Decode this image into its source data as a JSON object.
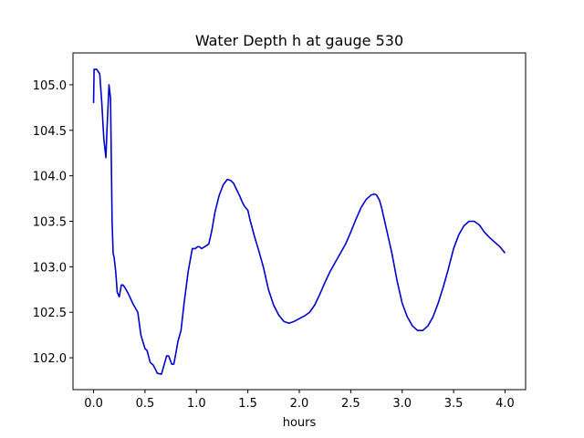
{
  "chart_data": {
    "type": "line",
    "title": "Water Depth h at gauge 530",
    "xlabel": "hours",
    "ylabel": "",
    "xlim": [
      -0.2,
      4.2
    ],
    "ylim": [
      101.65,
      105.35
    ],
    "xticks": [
      0.0,
      0.5,
      1.0,
      1.5,
      2.0,
      2.5,
      3.0,
      3.5,
      4.0
    ],
    "xtick_labels": [
      "0.0",
      "0.5",
      "1.0",
      "1.5",
      "2.0",
      "2.5",
      "3.0",
      "3.5",
      "4.0"
    ],
    "yticks": [
      102.0,
      102.5,
      103.0,
      103.5,
      104.0,
      104.5,
      105.0
    ],
    "ytick_labels": [
      "102.0",
      "102.5",
      "103.0",
      "103.5",
      "104.0",
      "104.5",
      "105.0"
    ],
    "grid": false,
    "colors": {
      "line": "#0000cc",
      "axes": "#000000"
    },
    "series": [
      {
        "x": [
          0.0,
          0.005,
          0.03,
          0.06,
          0.08,
          0.1,
          0.12,
          0.13,
          0.15,
          0.165,
          0.18,
          0.19,
          0.2,
          0.215,
          0.23,
          0.25,
          0.27,
          0.285,
          0.3,
          0.34,
          0.38,
          0.43,
          0.46,
          0.5,
          0.52,
          0.55,
          0.58,
          0.62,
          0.66,
          0.68,
          0.71,
          0.73,
          0.76,
          0.78,
          0.8,
          0.82,
          0.85,
          0.88,
          0.92,
          0.96,
          0.99,
          1.01,
          1.03,
          1.05,
          1.08,
          1.12,
          1.15,
          1.18,
          1.22,
          1.26,
          1.3,
          1.33,
          1.36,
          1.39,
          1.42,
          1.45,
          1.47,
          1.5,
          1.52,
          1.56,
          1.6,
          1.65,
          1.7,
          1.75,
          1.8,
          1.85,
          1.9,
          1.95,
          2.0,
          2.05,
          2.1,
          2.15,
          2.2,
          2.25,
          2.3,
          2.35,
          2.4,
          2.45,
          2.5,
          2.55,
          2.6,
          2.65,
          2.7,
          2.73,
          2.75,
          2.78,
          2.8,
          2.85,
          2.9,
          2.95,
          3.0,
          3.05,
          3.1,
          3.15,
          3.2,
          3.25,
          3.3,
          3.35,
          3.4,
          3.45,
          3.5,
          3.55,
          3.6,
          3.65,
          3.7,
          3.75,
          3.8,
          3.85,
          3.9,
          3.95,
          4.0
        ],
        "y": [
          104.8,
          105.17,
          105.17,
          105.12,
          104.8,
          104.4,
          104.2,
          104.5,
          105.0,
          104.85,
          103.5,
          103.15,
          103.1,
          102.95,
          102.72,
          102.67,
          102.8,
          102.8,
          102.78,
          102.7,
          102.6,
          102.5,
          102.25,
          102.1,
          102.08,
          101.95,
          101.92,
          101.83,
          101.82,
          101.9,
          102.02,
          102.02,
          101.93,
          101.93,
          102.05,
          102.18,
          102.3,
          102.6,
          102.95,
          103.2,
          103.2,
          103.22,
          103.22,
          103.2,
          103.22,
          103.25,
          103.4,
          103.6,
          103.78,
          103.9,
          103.96,
          103.95,
          103.92,
          103.85,
          103.78,
          103.7,
          103.66,
          103.62,
          103.52,
          103.35,
          103.2,
          103.0,
          102.75,
          102.58,
          102.47,
          102.4,
          102.38,
          102.4,
          102.43,
          102.46,
          102.5,
          102.58,
          102.7,
          102.83,
          102.95,
          103.05,
          103.15,
          103.25,
          103.38,
          103.52,
          103.65,
          103.74,
          103.79,
          103.8,
          103.79,
          103.73,
          103.65,
          103.4,
          103.15,
          102.85,
          102.6,
          102.45,
          102.35,
          102.3,
          102.3,
          102.35,
          102.45,
          102.6,
          102.78,
          102.98,
          103.2,
          103.35,
          103.45,
          103.5,
          103.5,
          103.46,
          103.38,
          103.32,
          103.27,
          103.22,
          103.15
        ]
      }
    ]
  }
}
